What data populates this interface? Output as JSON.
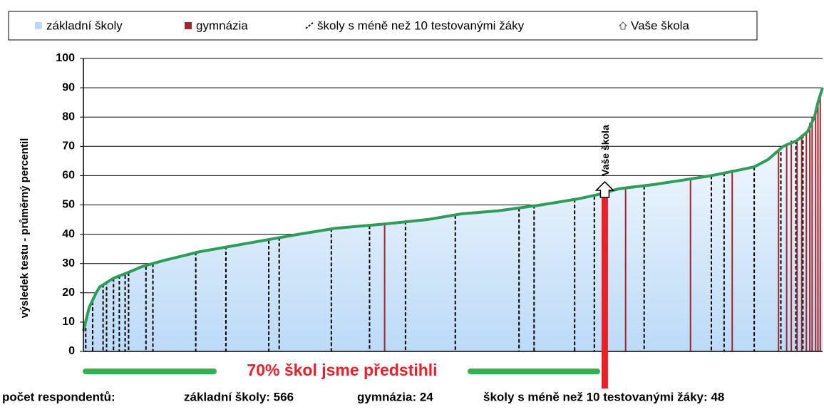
{
  "chart_data": {
    "type": "area",
    "y_label": "výsledek testu - průměrný percentil",
    "xlim": [
      0,
      638
    ],
    "ylim": [
      0,
      100
    ],
    "yticks": [
      0,
      10,
      20,
      30,
      40,
      50,
      60,
      70,
      80,
      90,
      100
    ],
    "grid": true,
    "legend_position": "top",
    "series": [
      {
        "name": "základní školy",
        "color": "#bcdaf7",
        "line_color": "#2e9c5a",
        "x": [
          0,
          5,
          11,
          14,
          26,
          39,
          51,
          69,
          100,
          143,
          186,
          217,
          260,
          297,
          327,
          358,
          395,
          426,
          444,
          462,
          493,
          518,
          542,
          567,
          579,
          591,
          604,
          616,
          625,
          631,
          634,
          638
        ],
        "values": [
          7,
          15,
          20,
          22,
          25,
          27,
          29,
          31,
          34,
          37,
          40,
          42,
          43.5,
          45,
          47,
          48,
          50,
          52,
          53.5,
          55.5,
          57,
          58.5,
          60,
          62,
          63,
          65.5,
          70,
          72,
          75,
          80,
          85,
          90
        ]
      },
      {
        "name": "gymnázia",
        "color": "#a0262a",
        "x": [
          260,
          468,
          524,
          560,
          600,
          607,
          611,
          616,
          620,
          624,
          627,
          629,
          632,
          634,
          636
        ],
        "values": [
          43.5,
          56,
          59,
          62,
          69,
          71,
          72,
          72,
          74,
          75,
          78,
          80,
          82,
          85,
          87
        ]
      },
      {
        "name": "školy s méně než 10 testovanými žáky",
        "color": "#000000",
        "x": [
          2,
          8,
          17,
          20,
          26,
          31,
          36,
          39,
          54,
          60,
          97,
          123,
          160,
          169,
          214,
          247,
          278,
          321,
          376,
          389,
          424,
          441,
          484,
          542,
          553,
          579,
          602,
          615,
          621
        ],
        "values": [
          10,
          17,
          23,
          24,
          25,
          26,
          26,
          27,
          29,
          30,
          34,
          36,
          38,
          39,
          42,
          43,
          44.5,
          46.5,
          49,
          50,
          52,
          53,
          56.5,
          60,
          61,
          63,
          70,
          72,
          74
        ]
      },
      {
        "name": "Vaše škola",
        "color": "#e8202a",
        "x": [
          450
        ],
        "values": [
          54
        ]
      }
    ],
    "annotation": "70% škol jsme předstihli",
    "footer": [
      "počet respondentů:",
      "základní školy: 566",
      "gymnázia: 24",
      "školy s méně než 10 testovanými žáky: 48"
    ]
  }
}
